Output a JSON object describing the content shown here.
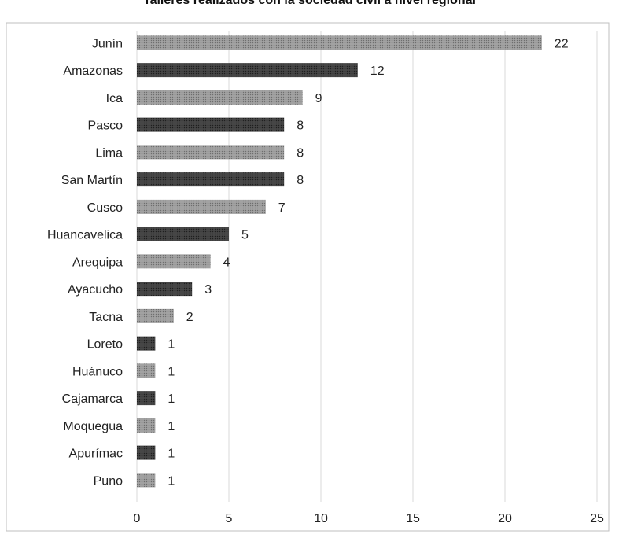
{
  "title": "Talleres realizados con la sociedad civil a nivel regional",
  "chart_data": {
    "type": "bar",
    "orientation": "horizontal",
    "title": "Talleres realizados con la sociedad civil a nivel regional",
    "categories": [
      "Junín",
      "Amazonas",
      "Ica",
      "Pasco",
      "Lima",
      "San Martín",
      "Cusco",
      "Huancavelica",
      "Arequipa",
      "Ayacucho",
      "Tacna",
      "Loreto",
      "Huánuco",
      "Cajamarca",
      "Moquegua",
      "Apurímac",
      "Puno"
    ],
    "values": [
      22,
      12,
      9,
      8,
      8,
      8,
      7,
      5,
      4,
      3,
      2,
      1,
      1,
      1,
      1,
      1,
      1
    ],
    "xticks": [
      0,
      5,
      10,
      15,
      20,
      25
    ],
    "xlim": [
      0,
      25
    ],
    "grid": true,
    "data_labels": true,
    "colors": {
      "bar_light": "#8c8c8c",
      "bar_dark": "#3a3a3a",
      "grid": "#d9d9d9",
      "frame": "#bfbfbf",
      "text": "#222222"
    }
  }
}
